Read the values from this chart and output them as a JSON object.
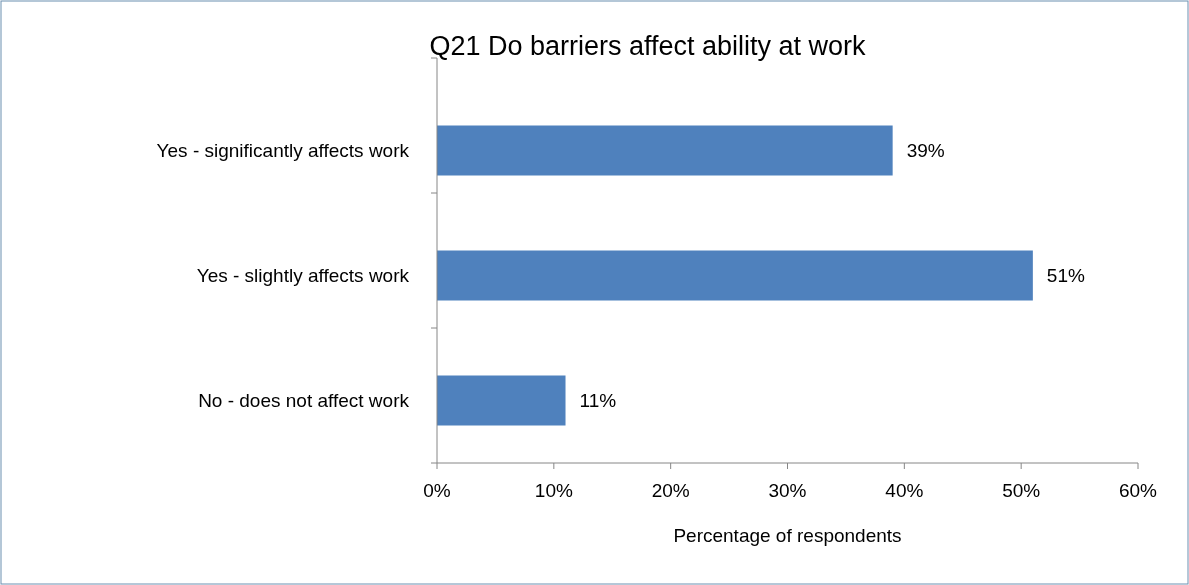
{
  "chart_data": {
    "type": "bar",
    "orientation": "horizontal",
    "title": "Q21 Do barriers affect ability at work",
    "xlabel": "Percentage of respondents",
    "categories": [
      "Yes - significantly affects work",
      "Yes - slightly affects work",
      "No - does not affect work"
    ],
    "values": [
      39,
      51,
      11
    ],
    "value_labels": [
      "39%",
      "51%",
      "11%"
    ],
    "color": "#4f81bd",
    "xlim": [
      0,
      60
    ],
    "xticks": [
      {
        "value": 0,
        "label": "0%"
      },
      {
        "value": 10,
        "label": "10%"
      },
      {
        "value": 20,
        "label": "20%"
      },
      {
        "value": 30,
        "label": "30%"
      },
      {
        "value": 40,
        "label": "40%"
      },
      {
        "value": 50,
        "label": "50%"
      },
      {
        "value": 60,
        "label": "60%"
      }
    ],
    "grid": false
  }
}
